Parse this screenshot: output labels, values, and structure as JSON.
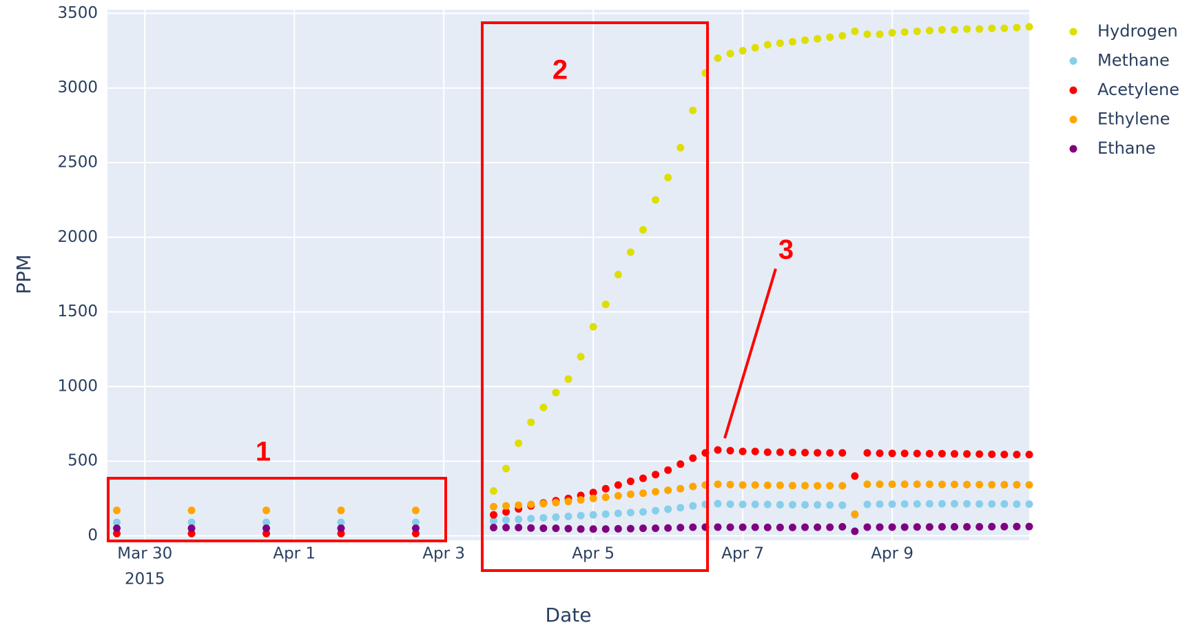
{
  "chart_data": {
    "type": "scatter",
    "x_title": "Date",
    "y_title": "PPM",
    "xlim": [
      "2015-03-29T12:00",
      "2015-04-10T20:00"
    ],
    "xticks": [
      {
        "value": "2015-03-30T00:00",
        "label": "Mar 30"
      },
      {
        "value": "2015-04-01T00:00",
        "label": "Apr 1"
      },
      {
        "value": "2015-04-03T00:00",
        "label": "Apr 3"
      },
      {
        "value": "2015-04-05T00:00",
        "label": "Apr 5"
      },
      {
        "value": "2015-04-07T00:00",
        "label": "Apr 7"
      },
      {
        "value": "2015-04-09T00:00",
        "label": "Apr 9"
      }
    ],
    "x_year": "2015",
    "ylim": [
      -30,
      3525
    ],
    "yticks": [
      0,
      500,
      1000,
      1500,
      2000,
      2500,
      3000,
      3500
    ],
    "grid": true,
    "legend": "right",
    "annotations": [
      "1",
      "2",
      "3"
    ],
    "x": [
      "2015-03-29T15:00",
      "2015-03-30T15:00",
      "2015-03-31T15:00",
      "2015-04-01T15:00",
      "2015-04-02T15:00",
      "2015-04-03T16:00",
      "2015-04-03T20:00",
      "2015-04-04T00:00",
      "2015-04-04T04:00",
      "2015-04-04T08:00",
      "2015-04-04T12:00",
      "2015-04-04T16:00",
      "2015-04-04T20:00",
      "2015-04-05T00:00",
      "2015-04-05T04:00",
      "2015-04-05T08:00",
      "2015-04-05T12:00",
      "2015-04-05T16:00",
      "2015-04-05T20:00",
      "2015-04-06T00:00",
      "2015-04-06T04:00",
      "2015-04-06T08:00",
      "2015-04-06T12:00",
      "2015-04-06T16:00",
      "2015-04-06T20:00",
      "2015-04-07T00:00",
      "2015-04-07T04:00",
      "2015-04-07T08:00",
      "2015-04-07T12:00",
      "2015-04-07T16:00",
      "2015-04-07T20:00",
      "2015-04-08T00:00",
      "2015-04-08T04:00",
      "2015-04-08T08:00",
      "2015-04-08T12:00",
      "2015-04-08T16:00",
      "2015-04-08T20:00",
      "2015-04-09T00:00",
      "2015-04-09T04:00",
      "2015-04-09T08:00",
      "2015-04-09T12:00",
      "2015-04-09T16:00",
      "2015-04-09T20:00",
      "2015-04-10T00:00",
      "2015-04-10T04:00",
      "2015-04-10T08:00",
      "2015-04-10T12:00",
      "2015-04-10T16:00",
      "2015-04-10T20:00"
    ],
    "series": [
      {
        "name": "Hydrogen",
        "color": "#dede00",
        "values": [
          null,
          null,
          null,
          null,
          null,
          300,
          450,
          620,
          760,
          860,
          960,
          1050,
          1200,
          1400,
          1550,
          1750,
          1900,
          2050,
          2250,
          2400,
          2600,
          2850,
          3100,
          3200,
          3230,
          3250,
          3270,
          3290,
          3300,
          3310,
          3320,
          3330,
          3340,
          3350,
          3380,
          3360,
          3360,
          3370,
          3375,
          3380,
          3385,
          3390,
          3390,
          3395,
          3395,
          3400,
          3400,
          3405,
          3410
        ]
      },
      {
        "name": "Methane",
        "color": "#87ceeb",
        "values": [
          90,
          90,
          90,
          90,
          90,
          100,
          105,
          110,
          115,
          120,
          125,
          130,
          135,
          140,
          145,
          150,
          155,
          160,
          168,
          178,
          188,
          200,
          210,
          215,
          212,
          210,
          210,
          210,
          208,
          208,
          207,
          207,
          206,
          205,
          140,
          210,
          212,
          212,
          213,
          213,
          214,
          214,
          214,
          214,
          213,
          213,
          213,
          212,
          212
        ]
      },
      {
        "name": "Acetylene",
        "color": "#ff0000",
        "values": [
          15,
          15,
          15,
          15,
          15,
          140,
          160,
          180,
          200,
          220,
          235,
          250,
          270,
          290,
          315,
          340,
          365,
          385,
          410,
          440,
          480,
          520,
          555,
          575,
          570,
          565,
          565,
          560,
          560,
          558,
          557,
          556,
          555,
          555,
          400,
          555,
          553,
          552,
          552,
          551,
          550,
          550,
          549,
          548,
          547,
          546,
          545,
          544,
          544
        ]
      },
      {
        "name": "Ethylene",
        "color": "#ffa500",
        "values": [
          170,
          170,
          170,
          170,
          170,
          195,
          200,
          205,
          210,
          215,
          222,
          230,
          240,
          250,
          258,
          268,
          278,
          285,
          295,
          305,
          315,
          330,
          340,
          345,
          343,
          340,
          340,
          338,
          338,
          336,
          336,
          335,
          335,
          335,
          145,
          345,
          345,
          345,
          345,
          345,
          345,
          344,
          344,
          343,
          343,
          342,
          342,
          342,
          341
        ]
      },
      {
        "name": "Ethane",
        "color": "#800080",
        "values": [
          50,
          50,
          50,
          50,
          50,
          55,
          55,
          55,
          52,
          50,
          50,
          48,
          45,
          45,
          45,
          47,
          48,
          50,
          50,
          52,
          55,
          57,
          58,
          58,
          57,
          57,
          57,
          56,
          56,
          56,
          57,
          57,
          57,
          60,
          30,
          58,
          58,
          58,
          58,
          59,
          59,
          60,
          60,
          60,
          60,
          61,
          61,
          62,
          62
        ]
      }
    ]
  }
}
